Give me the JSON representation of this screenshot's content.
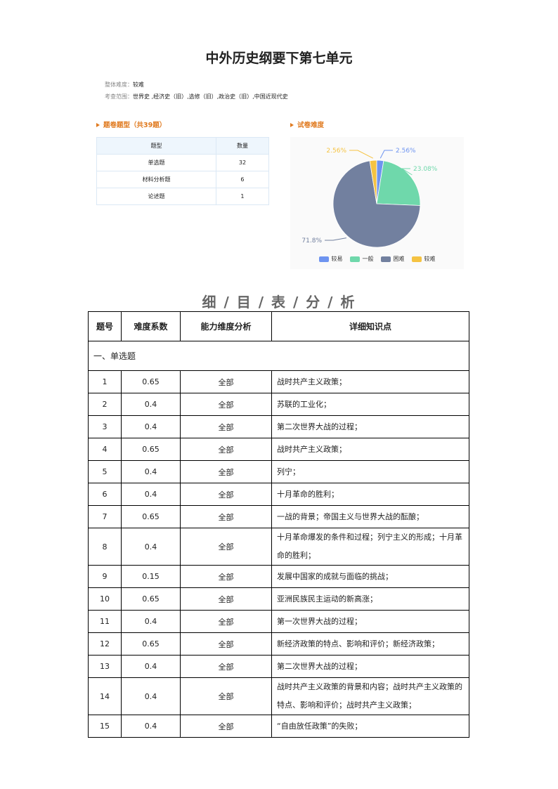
{
  "title": "中外历史纲要下第七单元",
  "meta": {
    "difficulty_label": "整体难度：",
    "difficulty": "较难",
    "scope_label": "考查范围：",
    "scope": "世界史 ,经济史（旧）,选修（旧）,政治史（旧）,中国近现代史"
  },
  "qtypes": {
    "heading": "题卷题型（共39题）",
    "headers": [
      "题型",
      "数量"
    ],
    "rows": [
      [
        "单选题",
        "32"
      ],
      [
        "材料分析题",
        "6"
      ],
      [
        "论述题",
        "1"
      ]
    ]
  },
  "difficulty_heading": "试卷难度",
  "chart_data": {
    "type": "pie",
    "slices": [
      {
        "name": "较易",
        "value": 2.56,
        "label": "2.56%",
        "color": "#6e94f0"
      },
      {
        "name": "一般",
        "value": 23.08,
        "label": "23.08%",
        "color": "#6fd8ab"
      },
      {
        "name": "困难",
        "value": 71.8,
        "label": "71.8%",
        "color": "#72809f"
      },
      {
        "name": "较难",
        "value": 2.56,
        "label": "2.56%",
        "color": "#f5c342"
      }
    ],
    "legend": "bottom"
  },
  "detail": {
    "title": "细 / 目 / 表 / 分 / 析",
    "headers": [
      "题号",
      "难度系数",
      "能力维度分析",
      "详细知识点"
    ],
    "section": "一、单选题",
    "rows": [
      [
        "1",
        "0.65",
        "全部",
        "战时共产主义政策；"
      ],
      [
        "2",
        "0.4",
        "全部",
        "苏联的工业化；"
      ],
      [
        "3",
        "0.4",
        "全部",
        "第二次世界大战的过程；"
      ],
      [
        "4",
        "0.65",
        "全部",
        "战时共产主义政策；"
      ],
      [
        "5",
        "0.4",
        "全部",
        "列宁；"
      ],
      [
        "6",
        "0.4",
        "全部",
        "十月革命的胜利；"
      ],
      [
        "7",
        "0.65",
        "全部",
        "一战的背景；帝国主义与世界大战的酝酿；"
      ],
      [
        "8",
        "0.4",
        "全部",
        "十月革命爆发的条件和过程；列宁主义的形成；十月革命的胜利；"
      ],
      [
        "9",
        "0.15",
        "全部",
        "发展中国家的成就与面临的挑战；"
      ],
      [
        "10",
        "0.65",
        "全部",
        "亚洲民族民主运动的新高涨；"
      ],
      [
        "11",
        "0.4",
        "全部",
        "第一次世界大战的过程；"
      ],
      [
        "12",
        "0.65",
        "全部",
        "新经济政策的特点、影响和评价；新经济政策；"
      ],
      [
        "13",
        "0.4",
        "全部",
        "第二次世界大战的过程；"
      ],
      [
        "14",
        "0.4",
        "全部",
        "战时共产主义政策的背景和内容；战时共产主义政策的特点、影响和评价；战时共产主义政策；"
      ],
      [
        "15",
        "0.4",
        "全部",
        "“自由放任政策”的失败；"
      ]
    ]
  }
}
